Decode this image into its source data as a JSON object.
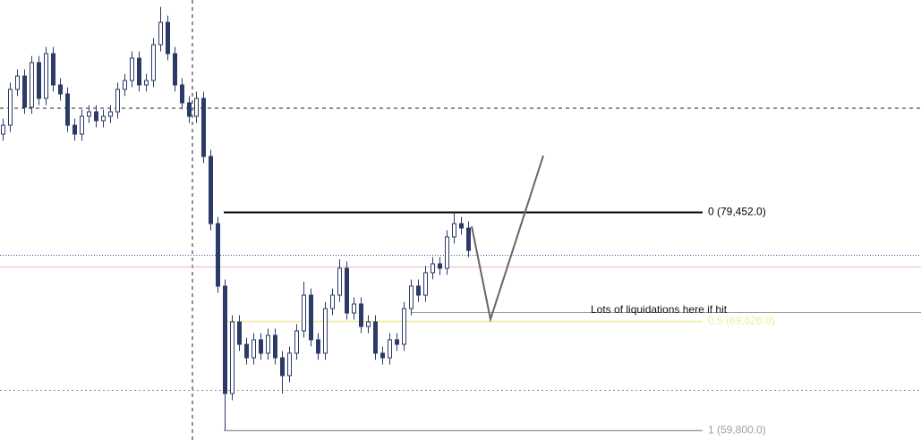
{
  "chart_data": {
    "type": "candlestick",
    "ylim": [
      58914,
      98540
    ],
    "color": "#2b3a67",
    "open": [
      86460,
      87260,
      90490,
      91690,
      88880,
      92900,
      89680,
      93710,
      90890,
      90080,
      87260,
      86460,
      88070,
      88470,
      87670,
      88070,
      88470,
      90490,
      91290,
      93300,
      90890,
      91290,
      94510,
      96530,
      93710,
      90890,
      89280,
      88070,
      89680,
      84450,
      78400,
      72770,
      63100,
      69550,
      67530,
      66320,
      67940,
      66730,
      68340,
      66320,
      64710,
      66730,
      68740,
      71960,
      67940,
      66730,
      70750,
      71960,
      74380,
      70350,
      71160,
      69140,
      69550,
      66730,
      66320,
      67940,
      67530,
      70750,
      72770,
      71960,
      73980,
      74780,
      74380,
      77200,
      78400,
      78000
    ],
    "high": [
      87860,
      91090,
      92290,
      92290,
      93500,
      93500,
      94310,
      94310,
      91490,
      90680,
      87860,
      88670,
      89070,
      89070,
      88670,
      89070,
      91090,
      91890,
      93900,
      93900,
      91890,
      95110,
      97930,
      97130,
      94310,
      91490,
      89880,
      90280,
      90280,
      85050,
      79000,
      73370,
      70150,
      70150,
      68130,
      68540,
      68540,
      68940,
      68940,
      66920,
      67330,
      69340,
      73170,
      72560,
      68540,
      71350,
      72560,
      75180,
      74980,
      71760,
      71760,
      70150,
      70150,
      67330,
      68540,
      68540,
      71350,
      73370,
      73370,
      74580,
      75380,
      75380,
      77800,
      79450,
      79000,
      78600
    ],
    "low": [
      85860,
      86660,
      89890,
      88280,
      88280,
      89080,
      89080,
      90290,
      89480,
      86660,
      85860,
      85860,
      87470,
      87070,
      87070,
      87470,
      87870,
      89890,
      90690,
      90290,
      90290,
      90690,
      93910,
      93110,
      90290,
      88680,
      87470,
      87470,
      83850,
      77800,
      72170,
      59800,
      62500,
      66930,
      65720,
      65720,
      66130,
      66130,
      65720,
      63100,
      64110,
      66130,
      68140,
      67340,
      66130,
      66130,
      70150,
      71360,
      69750,
      69750,
      68540,
      68540,
      66130,
      65720,
      65720,
      66930,
      66930,
      70150,
      71360,
      71360,
      73380,
      73780,
      73780,
      76600,
      77400,
      75390
    ],
    "close": [
      87260,
      90490,
      91690,
      88880,
      92900,
      89680,
      93710,
      90890,
      90080,
      87260,
      86460,
      88070,
      88470,
      87670,
      88070,
      88470,
      90490,
      91290,
      93300,
      90890,
      91290,
      94510,
      96530,
      93710,
      90890,
      89280,
      88070,
      89680,
      84450,
      78400,
      72770,
      63100,
      69550,
      67530,
      66320,
      67940,
      66730,
      68340,
      66320,
      64710,
      66730,
      68740,
      71960,
      67940,
      66730,
      70750,
      71960,
      74380,
      70350,
      71160,
      69140,
      69550,
      66730,
      66320,
      67940,
      67530,
      70750,
      72770,
      71960,
      73980,
      74780,
      74380,
      77200,
      78400,
      78000,
      75990
    ],
    "fib_levels": [
      {
        "price": 79452,
        "label": "0 (79,452.0)",
        "color": "#000000"
      },
      {
        "price": 69626,
        "label": "0.5 (69,626.0)",
        "color": "#f3ec9a"
      },
      {
        "price": 59800,
        "label": "1 (59,800.0)",
        "color": "#a0a0a0"
      }
    ],
    "annotation": "Lots of liquidations here if hit"
  }
}
